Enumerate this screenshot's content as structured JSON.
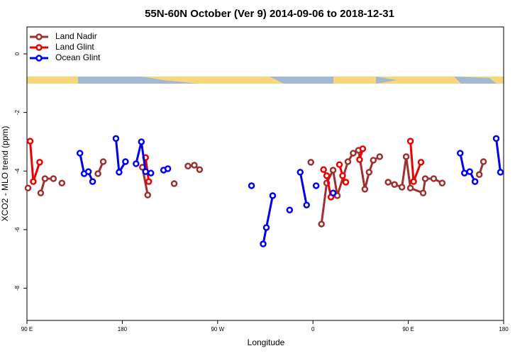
{
  "chart_data": {
    "type": "line",
    "title": "55N-60N October (Ver 9)   2014-09-06 to 2018-12-31",
    "x_label": "Longitude",
    "y_label": "XCO2 - MLO trend (ppm)",
    "xlim": [
      90,
      540
    ],
    "xticks": [
      {
        "value": 90,
        "label": "90 E"
      },
      180,
      {
        "value": 270,
        "label": "90 W"
      },
      {
        "value": 360,
        "label": "0"
      },
      {
        "value": 450,
        "label": "90 E"
      },
      {
        "value": 540,
        "label": "180"
      }
    ],
    "ylim": [
      -9.1,
      0.92
    ],
    "yticks": [
      0,
      -2,
      -4,
      -6,
      -8
    ],
    "legend": "top-left",
    "series": [
      {
        "name": "Land Nadir",
        "color": "#a03030",
        "x": [
          91,
          null,
          103,
          107,
          115,
          null,
          123,
          null,
          157,
          162,
          null,
          199,
          204,
          null,
          229,
          null,
          242,
          248,
          253,
          null,
          358,
          null,
          368,
          373,
          379,
          383,
          393,
          398,
          403,
          409,
          413,
          417,
          423,
          null,
          431,
          437,
          444,
          448,
          452,
          464,
          466,
          474,
          482,
          null,
          517,
          521
        ],
        "values": [
          -4.58,
          null,
          -4.75,
          -4.26,
          -4.26,
          null,
          -4.41,
          null,
          -4.09,
          -3.68,
          null,
          -3.87,
          -4.82,
          null,
          -4.43,
          null,
          -3.83,
          -3.8,
          -3.95,
          null,
          -3.7,
          null,
          -5.81,
          -4.41,
          -3.97,
          -4.84,
          -3.68,
          -3.39,
          -3.29,
          -4.62,
          -4.04,
          -3.63,
          -3.51,
          null,
          -4.38,
          -4.46,
          -4.55,
          -3.51,
          -4.58,
          -4.75,
          -4.26,
          -4.26,
          -4.41,
          null,
          -4.12,
          -3.68
        ]
      },
      {
        "name": "Land Glint",
        "color": "#ee0000",
        "x": [
          93,
          96,
          102,
          null,
          202,
          205,
          null,
          370,
          373,
          377,
          null,
          385,
          388,
          391,
          null,
          404,
          407,
          null,
          452,
          455,
          462
        ],
        "values": [
          -2.98,
          -4.36,
          -3.7,
          null,
          -3.54,
          -4.36,
          null,
          -3.95,
          -4.16,
          -4.89,
          null,
          -3.78,
          -4.16,
          -4.38,
          null,
          -3.61,
          -3.24,
          null,
          -2.98,
          -4.36,
          -3.7
        ]
      },
      {
        "name": "Ocean Glint",
        "color": "#0000ee",
        "x": [
          140,
          144,
          148,
          152,
          null,
          174,
          177,
          183,
          null,
          193,
          198,
          202,
          207,
          null,
          219,
          223,
          null,
          302,
          null,
          313,
          316,
          322,
          null,
          338,
          null,
          348,
          354,
          null,
          363,
          null,
          379,
          null,
          499,
          503,
          508,
          513,
          null,
          533,
          537
        ],
        "values": [
          -3.39,
          -4.09,
          -4.02,
          -4.36,
          null,
          -2.89,
          -4.04,
          -3.68,
          null,
          -3.75,
          -3.0,
          -4.02,
          -4.07,
          null,
          -3.97,
          -3.92,
          null,
          -4.5,
          null,
          -6.49,
          -5.93,
          -4.84,
          null,
          -5.33,
          null,
          -4.04,
          -5.16,
          null,
          -4.5,
          null,
          -4.75,
          null,
          -3.39,
          -4.07,
          -4.02,
          -4.36,
          null,
          -2.89,
          -4.04
        ]
      }
    ]
  }
}
